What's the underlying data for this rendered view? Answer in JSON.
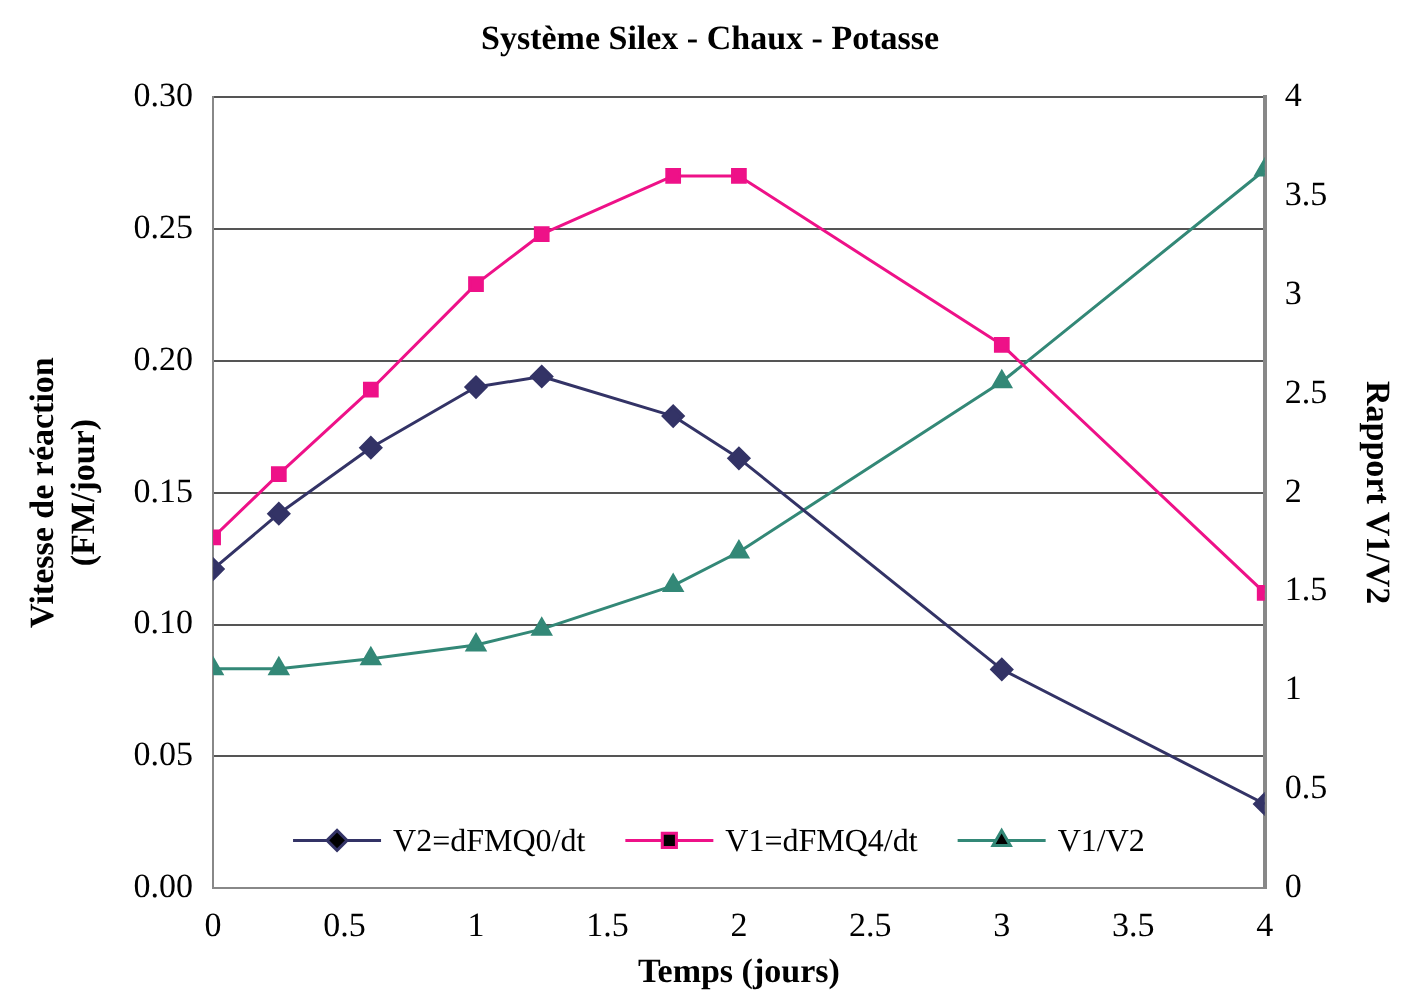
{
  "chart_data": {
    "type": "line",
    "title": "Système Silex - Chaux - Potasse",
    "xlabel": "Temps (jours)",
    "ylabel": "Vitesse de réaction (FM/jour)",
    "y2label": "Rapport V1/V2",
    "x": [
      0,
      0.25,
      0.6,
      1,
      1.25,
      1.75,
      2,
      3,
      4
    ],
    "xlim": [
      0,
      4
    ],
    "xticks": [
      0,
      0.5,
      1,
      1.5,
      2,
      2.5,
      3,
      3.5,
      4
    ],
    "ylim": [
      0,
      0.3
    ],
    "yticks": [
      {
        "value": 0,
        "label": "0.00"
      },
      {
        "value": 0.05,
        "label": "0.05"
      },
      {
        "value": 0.1,
        "label": "0.10"
      },
      {
        "value": 0.15,
        "label": "0.15"
      },
      {
        "value": 0.2,
        "label": "0.20"
      },
      {
        "value": 0.25,
        "label": "0.25"
      },
      {
        "value": 0.3,
        "label": "0.30"
      }
    ],
    "y2lim": [
      0,
      4
    ],
    "y2ticks": [
      0,
      0.5,
      1,
      1.5,
      2,
      2.5,
      3,
      3.5,
      4
    ],
    "grid": "y",
    "legend": "bottom",
    "series": [
      {
        "name": "V2=dFMQ0/dt",
        "color": "#333366",
        "marker": "diamond",
        "values": [
          0.121,
          0.142,
          0.167,
          0.19,
          0.194,
          0.179,
          0.163,
          0.083,
          0.032
        ]
      },
      {
        "name": "V1=dFMQ4/dt",
        "color": "#ee1188",
        "marker": "square",
        "values": [
          0.133,
          0.157,
          0.189,
          0.229,
          0.248,
          0.27,
          0.27,
          0.206,
          0.112
        ]
      },
      {
        "name": "V1/V2",
        "color": "#338877",
        "marker": "triangle",
        "axis": "y2",
        "values": [
          1.11,
          1.11,
          1.16,
          1.23,
          1.31,
          1.53,
          1.7,
          2.56,
          3.63
        ]
      }
    ]
  }
}
